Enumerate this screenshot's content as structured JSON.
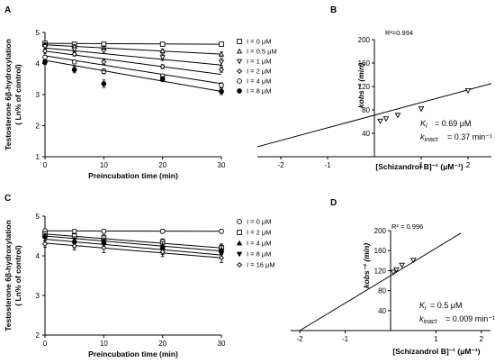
{
  "chart_data": [
    {
      "panel": "A",
      "type": "line",
      "title": "",
      "xlabel": "Preincubation time (min)",
      "ylabel": [
        "Testosterone 6β-hydroxylation",
        "( Ln% of control)"
      ],
      "xlim": [
        0,
        30
      ],
      "ylim": [
        1,
        5
      ],
      "xticks": [
        "0",
        "10",
        "20",
        "30"
      ],
      "yticks": [
        "1",
        "2",
        "3",
        "4",
        "5"
      ],
      "grid": false,
      "legend_position": "top-right",
      "series": [
        {
          "name": "I = 0 μM",
          "marker": "square-open",
          "x": [
            0,
            5,
            10,
            20,
            30
          ],
          "y": [
            4.65,
            4.62,
            4.62,
            4.62,
            4.62
          ],
          "err": [
            0.05,
            0.05,
            0.05,
            0.05,
            0.05
          ],
          "fit": [
            4.65,
            4.62
          ]
        },
        {
          "name": "I = 0.5 μM",
          "marker": "triangle-up-open",
          "x": [
            0,
            5,
            10,
            20,
            30
          ],
          "y": [
            4.6,
            4.55,
            4.5,
            4.4,
            4.3
          ],
          "err": [
            0.06,
            0.05,
            0.06,
            0.06,
            0.07
          ],
          "fit": [
            4.6,
            4.3
          ]
        },
        {
          "name": "I = 1 μM",
          "marker": "triangle-down-open",
          "x": [
            0,
            5,
            10,
            20,
            30
          ],
          "y": [
            4.55,
            4.45,
            4.4,
            4.2,
            4.05
          ],
          "err": [
            0.08,
            0.06,
            0.08,
            0.1,
            0.12
          ],
          "fit": [
            4.5,
            3.95
          ]
        },
        {
          "name": "I = 2 μM",
          "marker": "diamond-open",
          "x": [
            0,
            5,
            10,
            20,
            30
          ],
          "y": [
            4.4,
            4.3,
            4.05,
            3.9,
            3.8
          ],
          "err": [
            0.07,
            0.06,
            0.08,
            0.06,
            0.08
          ],
          "fit": [
            4.4,
            3.65
          ]
        },
        {
          "name": "I = 4 μM",
          "marker": "circle-open",
          "x": [
            0,
            5,
            10,
            20,
            30
          ],
          "y": [
            4.2,
            4.05,
            3.75,
            3.6,
            3.3
          ],
          "err": [
            0.06,
            0.06,
            0.08,
            0.06,
            0.08
          ],
          "fit": [
            4.25,
            3.35
          ]
        },
        {
          "name": "I = 8 μM",
          "marker": "circle-filled",
          "x": [
            0,
            5,
            10,
            20,
            30
          ],
          "y": [
            4.05,
            3.8,
            3.35,
            3.5,
            3.1
          ],
          "err": [
            0.08,
            0.1,
            0.12,
            0.08,
            0.1
          ],
          "fit": [
            4.1,
            3.1
          ]
        }
      ]
    },
    {
      "panel": "B",
      "type": "scatter",
      "title": "",
      "xlabel": "[Schizandrol B]⁻¹ (μM⁻¹)",
      "ylabel": "kobs⁻¹ (min)",
      "xlim": [
        -2.5,
        2.5
      ],
      "ylim": [
        0,
        200
      ],
      "xticks": [
        "-2",
        "-1",
        "1",
        "2"
      ],
      "yticks": [
        "40",
        "80",
        "120",
        "160",
        "200"
      ],
      "grid": false,
      "series": [
        {
          "name": "",
          "marker": "triangle-down-open",
          "x": [
            0.125,
            0.25,
            0.5,
            1,
            2
          ],
          "y": [
            61,
            65,
            71,
            82,
            113
          ],
          "fit_x": [
            -2.5,
            2.5
          ],
          "fit_y": [
            17,
            125
          ]
        }
      ],
      "annotations": [
        "R²=0.994",
        "Kᵢ = 0.69 μM",
        "kᵢₙₐ꜀ₜ = 0.37 min⁻¹"
      ]
    },
    {
      "panel": "C",
      "type": "line",
      "title": "",
      "xlabel": "Preincubation time (min)",
      "ylabel": [
        "Testosterone 6β-hydroxylation",
        "( Ln% of control)"
      ],
      "xlim": [
        0,
        30
      ],
      "ylim": [
        2,
        5
      ],
      "xticks": [
        "0",
        "10",
        "20",
        "30"
      ],
      "yticks": [
        "2",
        "3",
        "4",
        "5"
      ],
      "grid": false,
      "legend_position": "top-right",
      "series": [
        {
          "name": "I = 0 μM",
          "marker": "circle-open",
          "x": [
            0,
            5,
            10,
            20,
            30
          ],
          "y": [
            4.63,
            4.62,
            4.62,
            4.62,
            4.62
          ],
          "err": [
            0.05,
            0.05,
            0.05,
            0.05,
            0.05
          ],
          "fit": [
            4.63,
            4.62
          ]
        },
        {
          "name": "I = 2 μM",
          "marker": "square-open",
          "x": [
            0,
            5,
            10,
            20,
            30
          ],
          "y": [
            4.55,
            4.5,
            4.45,
            4.35,
            4.2
          ],
          "err": [
            0.06,
            0.06,
            0.08,
            0.08,
            0.1
          ],
          "fit": [
            4.55,
            4.2
          ]
        },
        {
          "name": "I = 4 μM",
          "marker": "triangle-up-filled",
          "x": [
            0,
            5,
            10,
            20,
            30
          ],
          "y": [
            4.5,
            4.4,
            4.35,
            4.25,
            4.15
          ],
          "err": [
            0.06,
            0.08,
            0.1,
            0.1,
            0.12
          ],
          "fit": [
            4.5,
            4.12
          ]
        },
        {
          "name": "I = 8 μM",
          "marker": "triangle-down-filled",
          "x": [
            0,
            5,
            10,
            20,
            30
          ],
          "y": [
            4.45,
            4.3,
            4.3,
            4.15,
            4.05
          ],
          "err": [
            0.08,
            0.1,
            0.12,
            0.12,
            0.12
          ],
          "fit": [
            4.42,
            4.02
          ]
        },
        {
          "name": "I = 16 μM",
          "marker": "diamond-open",
          "x": [
            0,
            5,
            10,
            20,
            30
          ],
          "y": [
            4.3,
            4.25,
            4.2,
            4.1,
            3.95
          ],
          "err": [
            0.08,
            0.1,
            0.12,
            0.12,
            0.12
          ],
          "fit": [
            4.32,
            3.95
          ]
        }
      ]
    },
    {
      "panel": "D",
      "type": "scatter",
      "title": "",
      "xlabel": "[Schizandrol B]⁻¹ (μM⁻¹)",
      "ylabel": "kobs⁻¹ (min)",
      "xlim": [
        -2.2,
        2.2
      ],
      "ylim": [
        0,
        200
      ],
      "xticks": [
        "-2",
        "-1",
        "1",
        "2"
      ],
      "yticks": [
        "40",
        "80",
        "120",
        "160",
        "200"
      ],
      "grid": false,
      "series": [
        {
          "name": "",
          "marker": "triangle-down-open",
          "x": [
            0.0625,
            0.125,
            0.25,
            0.5
          ],
          "y": [
            117,
            122,
            131,
            141
          ],
          "fit_x": [
            -2.0,
            1.55
          ],
          "fit_y": [
            0,
            195
          ]
        }
      ],
      "annotations": [
        "R² = 0.996",
        "Kᵢ =  0.5 μM",
        "kᵢₙₐ꜀ₜ = 0.009 min⁻¹"
      ]
    }
  ],
  "panel_letters": {
    "a": "A",
    "b": "B",
    "c": "C",
    "d": "D"
  },
  "annot": {
    "b_r2": "R²=0.994",
    "b_ki": "= 0.69 μM",
    "b_kinact": "= 0.37 min⁻¹",
    "d_r2": "R² = 0.996",
    "d_ki": "=  0.5 μM",
    "d_kinact": "= 0.009 min⁻¹"
  },
  "labels": {
    "ylabel_a1": "Testosterone 6β-hydroxylation",
    "ylabel_a2": "( Ln% of control)",
    "xlabel_a": "Preincubation time (min)",
    "ylabel_c1": "Testosterone 6β-hydroxylation",
    "ylabel_c2": "( Ln% of control)",
    "xlabel_c": "Preincubation time (min)",
    "xlabel_b": "[Schizandrol B]⁻¹ (μM⁻¹)",
    "xlabel_d": "[Schizandrol B]⁻¹ (μM⁻¹)",
    "ylabel_b": "kobs⁻¹ (min)",
    "ylabel_d": "kobs⁻¹ (min)"
  }
}
